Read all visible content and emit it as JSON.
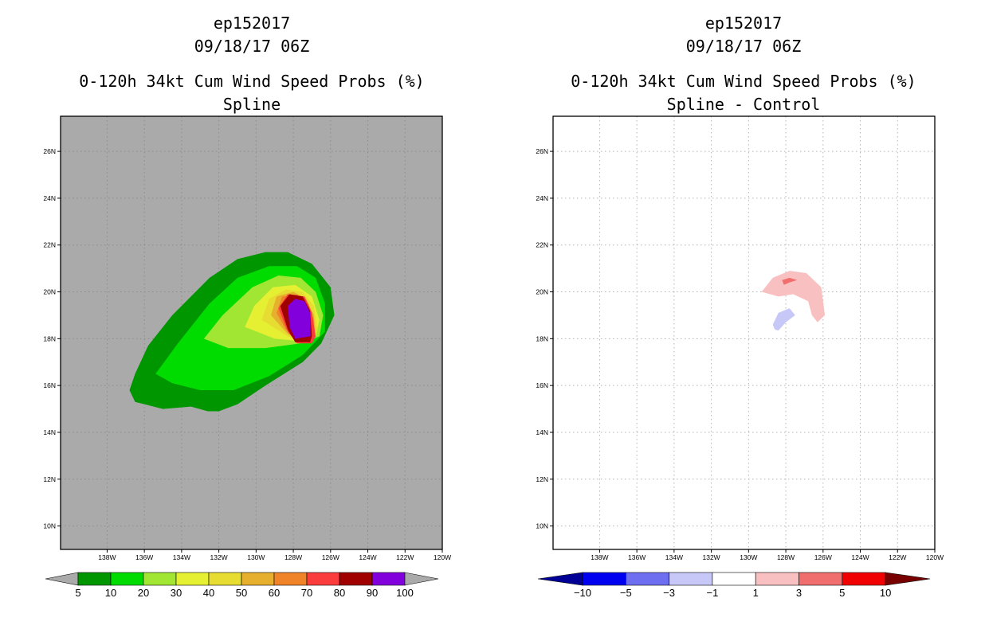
{
  "chart_data": [
    {
      "type": "heatmap",
      "storm": "ep152017",
      "date": "09/18/17 06Z",
      "title": "0-120h 34kt Cum Wind Speed Probs (%)",
      "subtitle": "Spline",
      "x_ticks": [
        "138W",
        "136W",
        "134W",
        "132W",
        "130W",
        "128W",
        "126W",
        "124W",
        "122W",
        "120W"
      ],
      "y_ticks": [
        "26N",
        "24N",
        "22N",
        "20N",
        "18N",
        "16N",
        "14N",
        "12N",
        "10N"
      ],
      "xlim": [
        -140.5,
        -120
      ],
      "ylim": [
        9,
        27.5
      ],
      "background_color": "#aaaaaa",
      "colorbar": {
        "labels": [
          "5",
          "10",
          "20",
          "30",
          "40",
          "50",
          "60",
          "70",
          "80",
          "90",
          "100"
        ],
        "colors": [
          "#009600",
          "#00dc00",
          "#a0e632",
          "#e6f032",
          "#e6dc32",
          "#e6af2d",
          "#f08228",
          "#fa3c3c",
          "#a00000",
          "#8200dc"
        ],
        "end_color": "#aaaaaa"
      },
      "levels": [
        {
          "threshold": 5,
          "color": "#009600",
          "polygon": [
            [
              -136.5,
              15.3
            ],
            [
              -136.8,
              15.8
            ],
            [
              -136.5,
              16.5
            ],
            [
              -135.8,
              17.7
            ],
            [
              -134.5,
              19.0
            ],
            [
              -132.5,
              20.6
            ],
            [
              -131,
              21.4
            ],
            [
              -129.5,
              21.7
            ],
            [
              -128.3,
              21.7
            ],
            [
              -127,
              21.2
            ],
            [
              -126,
              20.2
            ],
            [
              -125.8,
              19.0
            ],
            [
              -126.5,
              17.8
            ],
            [
              -127.5,
              17.0
            ],
            [
              -129.5,
              16.0
            ],
            [
              -131,
              15.2
            ],
            [
              -132,
              14.9
            ],
            [
              -132.6,
              14.9
            ],
            [
              -133.5,
              15.1
            ],
            [
              -135,
              15.0
            ]
          ]
        },
        {
          "threshold": 10,
          "color": "#00dc00",
          "polygon": [
            [
              -135.4,
              16.5
            ],
            [
              -134.2,
              17.8
            ],
            [
              -132.5,
              19.5
            ],
            [
              -131,
              20.6
            ],
            [
              -129.3,
              21.1
            ],
            [
              -127.8,
              21.1
            ],
            [
              -126.8,
              20.6
            ],
            [
              -126.3,
              19.5
            ],
            [
              -126.3,
              18.3
            ],
            [
              -127.5,
              17.3
            ],
            [
              -129.3,
              16.4
            ],
            [
              -131.2,
              15.8
            ],
            [
              -133,
              15.8
            ],
            [
              -134.5,
              16.1
            ]
          ]
        },
        {
          "threshold": 20,
          "color": "#a0e632",
          "polygon": [
            [
              -132.8,
              18.0
            ],
            [
              -131.8,
              19.0
            ],
            [
              -130.2,
              20.2
            ],
            [
              -128.8,
              20.7
            ],
            [
              -127.6,
              20.6
            ],
            [
              -126.8,
              20.0
            ],
            [
              -126.4,
              19.0
            ],
            [
              -126.6,
              18.1
            ],
            [
              -127.6,
              17.8
            ],
            [
              -129.5,
              17.6
            ],
            [
              -131.5,
              17.6
            ]
          ]
        },
        {
          "threshold": 30,
          "color": "#e6f032",
          "polygon": [
            [
              -130.6,
              18.5
            ],
            [
              -130.1,
              19.4
            ],
            [
              -129.1,
              20.2
            ],
            [
              -127.9,
              20.3
            ],
            [
              -127.0,
              19.8
            ],
            [
              -126.6,
              18.8
            ],
            [
              -126.8,
              18.1
            ],
            [
              -127.7,
              17.9
            ],
            [
              -129.0,
              18.0
            ]
          ]
        },
        {
          "threshold": 40,
          "color": "#e6dc32",
          "polygon": [
            [
              -129.7,
              18.8
            ],
            [
              -129.3,
              19.7
            ],
            [
              -128.4,
              20.1
            ],
            [
              -127.5,
              20.0
            ],
            [
              -126.9,
              19.4
            ],
            [
              -126.7,
              18.4
            ],
            [
              -127.3,
              17.9
            ],
            [
              -128.3,
              18.1
            ]
          ]
        },
        {
          "threshold": 50,
          "color": "#e6af2d",
          "polygon": [
            [
              -129.2,
              19.0
            ],
            [
              -128.9,
              19.8
            ],
            [
              -128.0,
              20.0
            ],
            [
              -127.3,
              19.7
            ],
            [
              -126.9,
              19.0
            ],
            [
              -126.8,
              18.2
            ],
            [
              -127.5,
              17.9
            ],
            [
              -128.3,
              18.2
            ]
          ]
        },
        {
          "threshold": 60,
          "color": "#f08228",
          "polygon": [
            [
              -128.9,
              19.1
            ],
            [
              -128.6,
              19.8
            ],
            [
              -127.8,
              19.9
            ],
            [
              -127.2,
              19.5
            ],
            [
              -126.9,
              18.8
            ],
            [
              -126.9,
              18.0
            ],
            [
              -127.8,
              17.9
            ],
            [
              -128.4,
              18.4
            ]
          ]
        },
        {
          "threshold": 70,
          "color": "#fa3c3c",
          "polygon": [
            [
              -128.8,
              19.3
            ],
            [
              -128.3,
              19.9
            ],
            [
              -127.4,
              19.8
            ],
            [
              -127.0,
              19.1
            ],
            [
              -126.8,
              18.1
            ],
            [
              -127.0,
              17.8
            ],
            [
              -127.8,
              17.8
            ],
            [
              -128.3,
              18.3
            ]
          ]
        },
        {
          "threshold": 80,
          "color": "#a00000",
          "polygon": [
            [
              -128.7,
              19.4
            ],
            [
              -128.2,
              19.9
            ],
            [
              -127.5,
              19.8
            ],
            [
              -127.1,
              19.2
            ],
            [
              -127.0,
              18.1
            ],
            [
              -127.1,
              17.85
            ],
            [
              -127.9,
              17.85
            ],
            [
              -128.3,
              18.4
            ]
          ]
        },
        {
          "threshold": 90,
          "color": "#8200dc",
          "polygon": [
            [
              -128.3,
              19.4
            ],
            [
              -127.9,
              19.7
            ],
            [
              -127.4,
              19.6
            ],
            [
              -127.1,
              19.1
            ],
            [
              -127.1,
              18.1
            ],
            [
              -127.9,
              18.0
            ],
            [
              -128.2,
              18.5
            ]
          ]
        }
      ]
    },
    {
      "type": "heatmap",
      "storm": "ep152017",
      "date": "09/18/17 06Z",
      "title": "0-120h 34kt Cum Wind Speed Probs (%)",
      "subtitle": "Spline - Control",
      "x_ticks": [
        "138W",
        "136W",
        "134W",
        "132W",
        "130W",
        "128W",
        "126W",
        "124W",
        "122W",
        "120W"
      ],
      "y_ticks": [
        "26N",
        "24N",
        "22N",
        "20N",
        "18N",
        "16N",
        "14N",
        "12N",
        "10N"
      ],
      "xlim": [
        -140.5,
        -120
      ],
      "ylim": [
        9,
        27.5
      ],
      "background_color": "#ffffff",
      "grid": true,
      "colorbar": {
        "labels": [
          "-10",
          "-5",
          "-3",
          "-1",
          "1",
          "3",
          "5",
          "10"
        ],
        "colors": [
          "#0000f0",
          "#6e6ef0",
          "#c8c8f8",
          "#ffffff",
          "#f8c0c0",
          "#f06e6e",
          "#f00000"
        ],
        "start_color": "#000096",
        "end_color": "#780000"
      },
      "levels": [
        {
          "threshold": 1,
          "color": "#f8c0c0",
          "polygon": [
            [
              -129.3,
              20.0
            ],
            [
              -128.7,
              20.6
            ],
            [
              -127.8,
              20.9
            ],
            [
              -126.9,
              20.8
            ],
            [
              -126.1,
              20.2
            ],
            [
              -125.9,
              19.0
            ],
            [
              -126.3,
              18.7
            ],
            [
              -126.6,
              19.0
            ],
            [
              -126.8,
              19.6
            ],
            [
              -127.6,
              19.9
            ],
            [
              -128.4,
              19.8
            ]
          ]
        },
        {
          "threshold": 3,
          "color": "#f06e6e",
          "polygon": [
            [
              -128.2,
              20.5
            ],
            [
              -127.8,
              20.6
            ],
            [
              -127.4,
              20.5
            ],
            [
              -127.8,
              20.4
            ],
            [
              -128.1,
              20.3
            ]
          ]
        },
        {
          "threshold": -1,
          "color": "#c8c8f8",
          "polygon": [
            [
              -128.7,
              18.6
            ],
            [
              -128.4,
              19.1
            ],
            [
              -127.8,
              19.3
            ],
            [
              -127.5,
              19.0
            ],
            [
              -128.0,
              18.7
            ],
            [
              -128.4,
              18.35
            ],
            [
              -128.6,
              18.4
            ]
          ]
        }
      ]
    }
  ]
}
